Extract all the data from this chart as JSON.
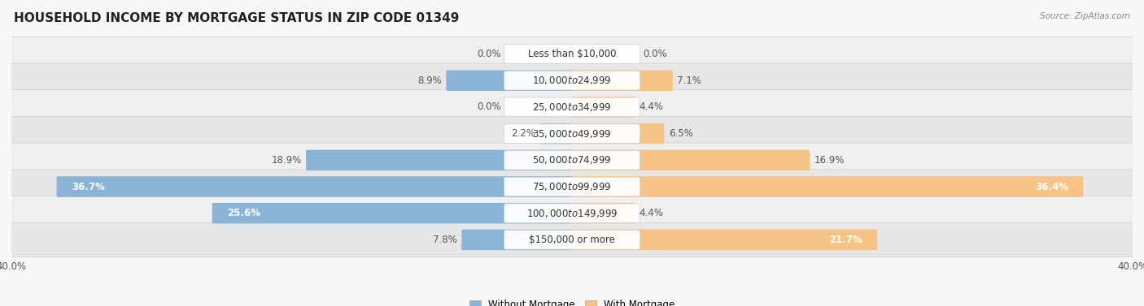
{
  "title": "HOUSEHOLD INCOME BY MORTGAGE STATUS IN ZIP CODE 01349",
  "source": "Source: ZipAtlas.com",
  "categories": [
    "Less than $10,000",
    "$10,000 to $24,999",
    "$25,000 to $34,999",
    "$35,000 to $49,999",
    "$50,000 to $74,999",
    "$75,000 to $99,999",
    "$100,000 to $149,999",
    "$150,000 or more"
  ],
  "without_mortgage": [
    0.0,
    8.9,
    0.0,
    2.2,
    18.9,
    36.7,
    25.6,
    7.8
  ],
  "with_mortgage": [
    0.0,
    7.1,
    4.4,
    6.5,
    16.9,
    36.4,
    4.4,
    21.7
  ],
  "max_val": 40.0,
  "bar_color_without": "#8ab4d5",
  "bar_color_with": "#f5c485",
  "row_bg_even": "#efefef",
  "row_bg_odd": "#e6e6e6",
  "row_border": "#d5d5d5",
  "title_fontsize": 11,
  "label_fontsize": 8.5,
  "category_fontsize": 8.5,
  "axis_label_fontsize": 8.5,
  "inside_label_threshold": 20.0
}
